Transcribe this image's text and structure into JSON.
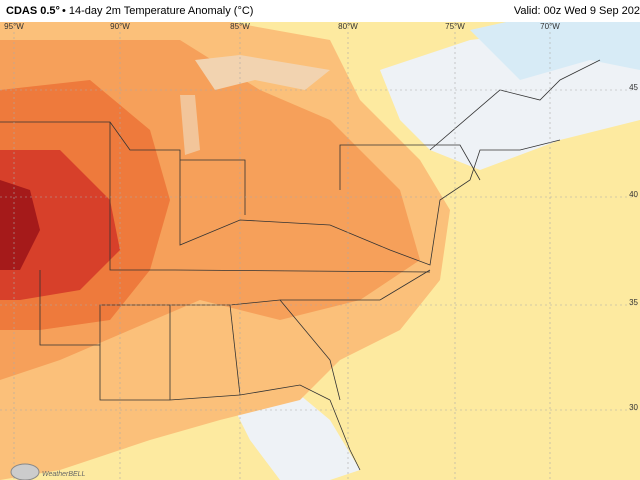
{
  "header": {
    "model": "CDAS 0.5°",
    "title": "• 14-day 2m Temperature Anomaly (°C)",
    "valid": "Valid: 00z Wed 9 Sep 202"
  },
  "longitude_labels": [
    "95°W",
    "90°W",
    "85°W",
    "80°W",
    "75°W",
    "70°W"
  ],
  "latitude_labels": [
    "45",
    "40",
    "35",
    "30"
  ],
  "logo": "WeatherBELL"
}
